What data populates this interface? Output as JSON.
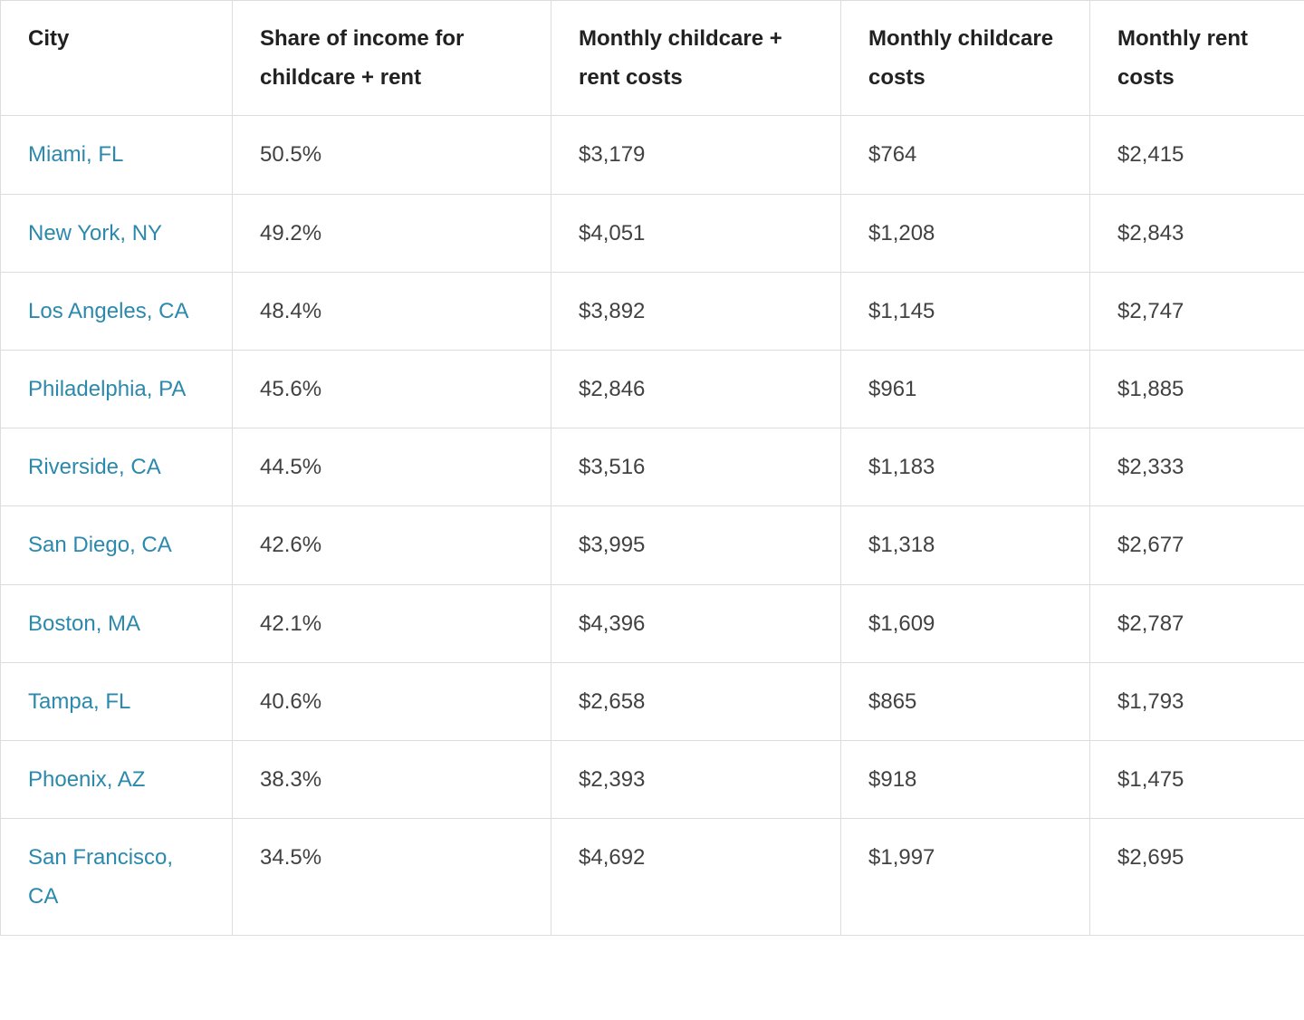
{
  "chart_data": {
    "type": "table",
    "columns": [
      "City",
      "Share of income for childcare + rent",
      "Monthly childcare + rent costs",
      "Monthly childcare costs",
      "Monthly rent costs"
    ],
    "rows": [
      [
        "Miami, FL",
        "50.5%",
        "$3,179",
        "$764",
        "$2,415"
      ],
      [
        "New York, NY",
        "49.2%",
        "$4,051",
        "$1,208",
        "$2,843"
      ],
      [
        "Los Angeles, CA",
        "48.4%",
        "$3,892",
        "$1,145",
        "$2,747"
      ],
      [
        "Philadelphia, PA",
        "45.6%",
        "$2,846",
        "$961",
        "$1,885"
      ],
      [
        "Riverside, CA",
        "44.5%",
        "$3,516",
        "$1,183",
        "$2,333"
      ],
      [
        "San Diego, CA",
        "42.6%",
        "$3,995",
        "$1,318",
        "$2,677"
      ],
      [
        "Boston, MA",
        "42.1%",
        "$4,396",
        "$1,609",
        "$2,787"
      ],
      [
        "Tampa, FL",
        "40.6%",
        "$2,658",
        "$865",
        "$1,793"
      ],
      [
        "Phoenix, AZ",
        "38.3%",
        "$2,393",
        "$918",
        "$1,475"
      ],
      [
        "San Francisco, CA",
        "34.5%",
        "$4,692",
        "$1,997",
        "$2,695"
      ]
    ]
  },
  "colors": {
    "city_link": "#2b89ad",
    "header_text": "#212121",
    "body_text": "#414141",
    "gridline": "#dcdcdc",
    "background": "#ffffff"
  }
}
